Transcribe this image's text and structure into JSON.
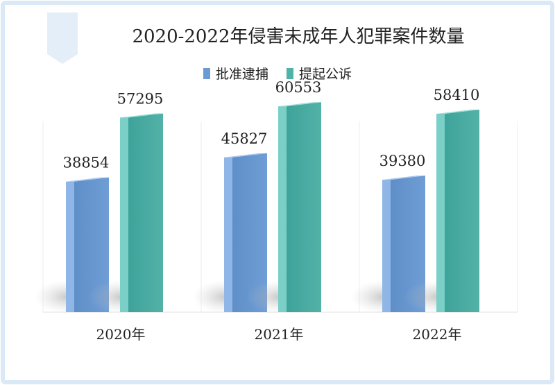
{
  "chart_data": {
    "type": "bar",
    "title": "2020-2022年侵害未成年人犯罪案件数量",
    "categories": [
      "2020年",
      "2021年",
      "2022年"
    ],
    "series": [
      {
        "name": "批准逮捕",
        "values": [
          38854,
          45827,
          39380
        ],
        "color": "#6a9bd4"
      },
      {
        "name": "提起公诉",
        "values": [
          57295,
          60553,
          58410
        ],
        "color": "#4fb3aa"
      }
    ],
    "ylim": [
      0,
      80000
    ],
    "grid": false,
    "legend_position": "top"
  }
}
